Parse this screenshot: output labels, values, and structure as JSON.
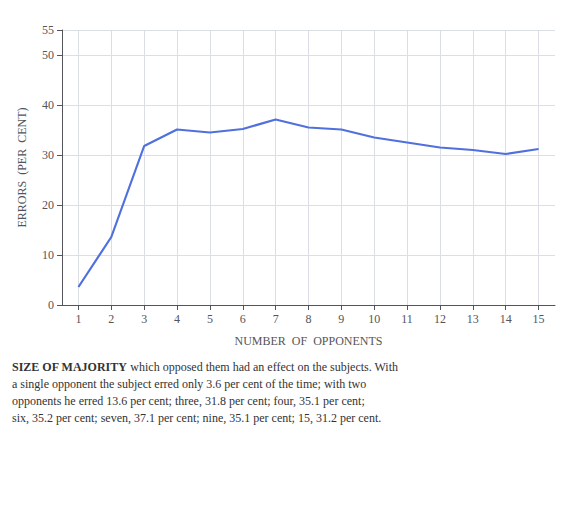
{
  "chart_data": {
    "type": "line",
    "x": [
      1,
      2,
      3,
      4,
      5,
      6,
      7,
      8,
      9,
      10,
      11,
      12,
      13,
      14,
      15
    ],
    "values": [
      3.6,
      13.6,
      31.8,
      35.1,
      34.5,
      35.2,
      37.1,
      35.5,
      35.1,
      33.5,
      32.5,
      31.5,
      31.0,
      30.2,
      31.2
    ],
    "xlabel": "NUMBER  OF  OPPONENTS",
    "ylabel": "ERRORS  (PER  CENT)",
    "xlim": [
      0.5,
      15.5
    ],
    "ylim": [
      0,
      55
    ],
    "xticks": [
      1,
      2,
      3,
      4,
      5,
      6,
      7,
      8,
      9,
      10,
      11,
      12,
      13,
      14,
      15
    ],
    "yticks": [
      0,
      10,
      20,
      30,
      40,
      50
    ],
    "grid": true,
    "annotations": [
      "SIZE OF MAJORITY",
      " which opposed them had an effect on the subjects. With\na single opponent the subject erred only 3.6 per cent of the time; with two\nopponents he erred 13.6 per cent; three, 31.8 per cent; four, 35.1 per cent;\nsix, 35.2 per cent; seven, 37.1 per cent; nine, 35.1 per cent; 15, 31.2 per cent."
    ]
  }
}
